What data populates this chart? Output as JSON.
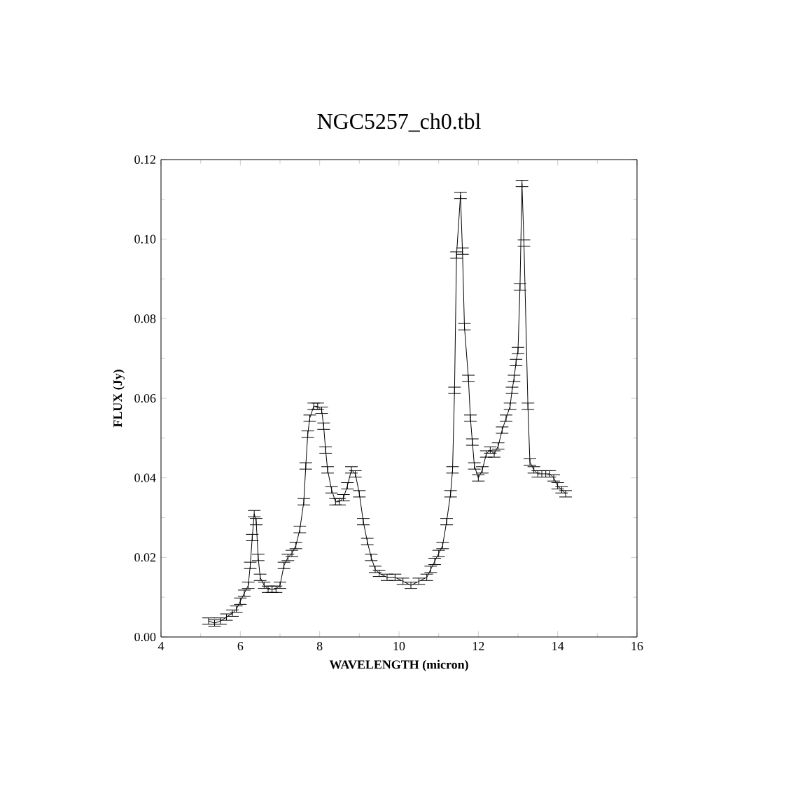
{
  "chart_data": {
    "type": "line",
    "title": "NGC5257_ch0.tbl",
    "xlabel": "WAVELENGTH (micron)",
    "ylabel": "FLUX (Jy)",
    "x": [
      5.2,
      5.35,
      5.5,
      5.65,
      5.8,
      5.9,
      6.0,
      6.1,
      6.2,
      6.25,
      6.3,
      6.35,
      6.4,
      6.45,
      6.5,
      6.6,
      6.7,
      6.8,
      6.9,
      7.0,
      7.1,
      7.2,
      7.3,
      7.4,
      7.5,
      7.6,
      7.65,
      7.7,
      7.75,
      7.85,
      7.95,
      8.05,
      8.1,
      8.15,
      8.2,
      8.3,
      8.4,
      8.5,
      8.6,
      8.7,
      8.8,
      8.9,
      9.0,
      9.1,
      9.2,
      9.3,
      9.4,
      9.5,
      9.7,
      9.9,
      10.1,
      10.3,
      10.5,
      10.7,
      10.8,
      10.9,
      11.0,
      11.1,
      11.2,
      11.3,
      11.35,
      11.4,
      11.45,
      11.55,
      11.6,
      11.65,
      11.75,
      11.8,
      11.85,
      11.9,
      12.0,
      12.1,
      12.2,
      12.3,
      12.4,
      12.5,
      12.6,
      12.7,
      12.8,
      12.85,
      12.9,
      12.95,
      13.0,
      13.05,
      13.1,
      13.15,
      13.25,
      13.3,
      13.4,
      13.5,
      13.6,
      13.7,
      13.8,
      13.9,
      14.0,
      14.1,
      14.2
    ],
    "values": [
      0.004,
      0.0035,
      0.004,
      0.005,
      0.006,
      0.007,
      0.009,
      0.011,
      0.013,
      0.018,
      0.025,
      0.031,
      0.029,
      0.02,
      0.015,
      0.013,
      0.012,
      0.012,
      0.012,
      0.013,
      0.018,
      0.02,
      0.021,
      0.023,
      0.027,
      0.034,
      0.043,
      0.051,
      0.055,
      0.058,
      0.058,
      0.057,
      0.053,
      0.047,
      0.042,
      0.037,
      0.034,
      0.034,
      0.035,
      0.038,
      0.042,
      0.041,
      0.036,
      0.029,
      0.024,
      0.02,
      0.017,
      0.016,
      0.015,
      0.015,
      0.014,
      0.013,
      0.014,
      0.015,
      0.017,
      0.019,
      0.021,
      0.023,
      0.029,
      0.036,
      0.042,
      0.062,
      0.096,
      0.111,
      0.097,
      0.078,
      0.065,
      0.055,
      0.049,
      0.043,
      0.04,
      0.042,
      0.046,
      0.047,
      0.046,
      0.048,
      0.052,
      0.055,
      0.058,
      0.062,
      0.065,
      0.069,
      0.072,
      0.088,
      0.114,
      0.099,
      0.058,
      0.044,
      0.042,
      0.041,
      0.041,
      0.041,
      0.041,
      0.04,
      0.038,
      0.037,
      0.036
    ],
    "errors": [
      0.0008,
      0.0008,
      0.0008,
      0.0008,
      0.0008,
      0.0008,
      0.0008,
      0.0008,
      0.0008,
      0.0008,
      0.0008,
      0.0008,
      0.0008,
      0.0008,
      0.0008,
      0.0008,
      0.0008,
      0.0008,
      0.0008,
      0.0008,
      0.0008,
      0.0008,
      0.0008,
      0.0008,
      0.0008,
      0.0008,
      0.0008,
      0.0008,
      0.0008,
      0.0008,
      0.0008,
      0.0008,
      0.0008,
      0.0008,
      0.0008,
      0.0008,
      0.0008,
      0.0008,
      0.0008,
      0.0008,
      0.0008,
      0.0008,
      0.0008,
      0.0008,
      0.0008,
      0.0008,
      0.0008,
      0.0008,
      0.0008,
      0.0008,
      0.0008,
      0.0008,
      0.0008,
      0.0008,
      0.0008,
      0.0008,
      0.0008,
      0.0008,
      0.0008,
      0.0008,
      0.0008,
      0.0008,
      0.0008,
      0.0008,
      0.0008,
      0.0008,
      0.0008,
      0.0008,
      0.0008,
      0.0008,
      0.0008,
      0.0008,
      0.0008,
      0.0008,
      0.0008,
      0.0008,
      0.0008,
      0.0008,
      0.0008,
      0.0008,
      0.0008,
      0.0008,
      0.0008,
      0.0008,
      0.0008,
      0.0008,
      0.0008,
      0.0008,
      0.0008,
      0.0008,
      0.0008,
      0.0008,
      0.0008,
      0.0008,
      0.0008,
      0.0008,
      0.0008
    ],
    "color": "#000000",
    "line_style": "solid",
    "xlim": [
      4,
      16
    ],
    "xticks": [
      4,
      6,
      8,
      10,
      12,
      14,
      16
    ],
    "ylim": [
      0,
      0.12
    ],
    "yticks": [
      {
        "value": 0,
        "label": "0.00"
      },
      {
        "value": 0.02,
        "label": "0.02"
      },
      {
        "value": 0.04,
        "label": "0.04"
      },
      {
        "value": 0.06,
        "label": "0.06"
      },
      {
        "value": 0.08,
        "label": "0.08"
      },
      {
        "value": 0.1,
        "label": "0.10"
      },
      {
        "value": 0.12,
        "label": "0.12"
      }
    ]
  }
}
